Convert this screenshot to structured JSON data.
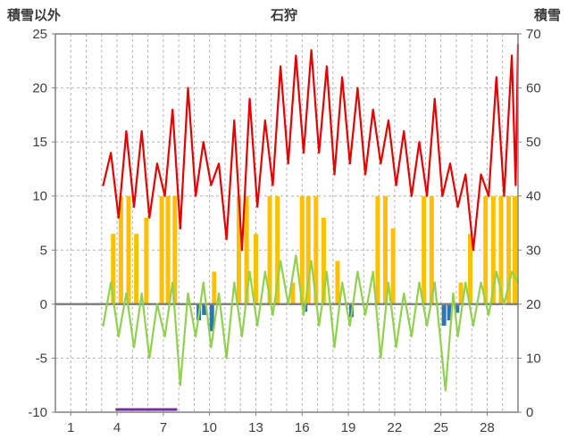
{
  "header": {
    "left_axis_title": "積雪以外",
    "chart_title": "石狩",
    "right_axis_title": "積雪"
  },
  "chart_data": {
    "type": "line",
    "title": "石狩",
    "left_axis": {
      "label": "積雪以外",
      "min": -10,
      "max": 25,
      "ticks": [
        25,
        20,
        15,
        10,
        5,
        0,
        -5,
        -10
      ]
    },
    "right_axis": {
      "label": "積雪",
      "min": 0,
      "max": 70,
      "ticks": [
        70,
        60,
        50,
        40,
        30,
        20,
        10,
        0
      ]
    },
    "x_axis": {
      "tick_labels": [
        1,
        4,
        7,
        10,
        13,
        16,
        19,
        22,
        25,
        28
      ]
    },
    "x_domain": [
      0,
      30
    ],
    "grid": {
      "color": "#b3b3b3",
      "frame_color": "#808080",
      "zero_line_color": "#808080",
      "text_color": "#404040"
    },
    "series": [
      {
        "name": "yellow-bars",
        "type": "bar",
        "color": "#ffc000",
        "points": [
          [
            3.75,
            6.5
          ],
          [
            4.25,
            10
          ],
          [
            4.75,
            10
          ],
          [
            5.25,
            6.5
          ],
          [
            5.9,
            8
          ],
          [
            6.9,
            10
          ],
          [
            7.3,
            10
          ],
          [
            7.75,
            10
          ],
          [
            10.3,
            3
          ],
          [
            11.9,
            10
          ],
          [
            12.4,
            10
          ],
          [
            13.0,
            6.5
          ],
          [
            13.9,
            10
          ],
          [
            14.4,
            10
          ],
          [
            15.4,
            2
          ],
          [
            16.0,
            10
          ],
          [
            16.4,
            10
          ],
          [
            16.9,
            10
          ],
          [
            17.4,
            8
          ],
          [
            18.3,
            4
          ],
          [
            20.9,
            10
          ],
          [
            21.4,
            10
          ],
          [
            21.9,
            7
          ],
          [
            23.9,
            10
          ],
          [
            24.4,
            10
          ],
          [
            26.3,
            2
          ],
          [
            26.9,
            6.5
          ],
          [
            27.9,
            10
          ],
          [
            28.4,
            10
          ],
          [
            28.9,
            10
          ],
          [
            29.4,
            10
          ],
          [
            29.8,
            10
          ]
        ]
      },
      {
        "name": "blue-bars",
        "type": "bar",
        "color": "#2e75b6",
        "points": [
          [
            9.3,
            -1.5
          ],
          [
            9.65,
            -1
          ],
          [
            10.15,
            -2.5
          ],
          [
            16.2,
            -0.7
          ],
          [
            19.2,
            -1.2
          ],
          [
            25.2,
            -2
          ],
          [
            25.55,
            -1.5
          ],
          [
            26.05,
            -0.8
          ]
        ]
      },
      {
        "name": "purple-segment",
        "type": "segment",
        "color": "#7030a0",
        "x_start": 3.9,
        "x_end": 7.9,
        "value": -10
      },
      {
        "name": "green-line",
        "type": "line",
        "color": "#92d050",
        "points": [
          [
            3.1,
            -2
          ],
          [
            3.6,
            2
          ],
          [
            4.1,
            -3
          ],
          [
            4.6,
            1
          ],
          [
            5.1,
            -4
          ],
          [
            5.6,
            1
          ],
          [
            6.1,
            -5
          ],
          [
            6.6,
            0
          ],
          [
            7.1,
            -3
          ],
          [
            7.6,
            2
          ],
          [
            8.1,
            -7.5
          ],
          [
            8.6,
            1
          ],
          [
            9.1,
            -3
          ],
          [
            9.6,
            2
          ],
          [
            10.1,
            -4
          ],
          [
            10.6,
            1
          ],
          [
            11.1,
            -5
          ],
          [
            11.6,
            2
          ],
          [
            12.1,
            -3
          ],
          [
            12.6,
            3
          ],
          [
            13.1,
            -2
          ],
          [
            13.6,
            3
          ],
          [
            14.1,
            -1
          ],
          [
            14.6,
            4
          ],
          [
            15.1,
            0
          ],
          [
            15.6,
            4.5
          ],
          [
            16.1,
            -1
          ],
          [
            16.6,
            4
          ],
          [
            17.1,
            -2
          ],
          [
            17.6,
            3
          ],
          [
            18.1,
            -4
          ],
          [
            18.6,
            2
          ],
          [
            19.1,
            -2
          ],
          [
            19.6,
            3
          ],
          [
            20.1,
            -1
          ],
          [
            20.6,
            3
          ],
          [
            21.1,
            -5
          ],
          [
            21.6,
            2
          ],
          [
            22.1,
            -4
          ],
          [
            22.6,
            1
          ],
          [
            23.1,
            -3
          ],
          [
            23.6,
            2
          ],
          [
            24.1,
            -2
          ],
          [
            24.6,
            2
          ],
          [
            25.3,
            -8
          ],
          [
            25.8,
            1
          ],
          [
            26.1,
            -3
          ],
          [
            26.6,
            2
          ],
          [
            27.1,
            -2
          ],
          [
            27.6,
            2
          ],
          [
            28.1,
            -1
          ],
          [
            28.6,
            3
          ],
          [
            29.1,
            0
          ],
          [
            29.6,
            3
          ],
          [
            30,
            2
          ]
        ]
      },
      {
        "name": "red-line",
        "type": "line",
        "color": "#e60000",
        "points": [
          [
            3.1,
            11
          ],
          [
            3.6,
            14
          ],
          [
            4.1,
            8
          ],
          [
            4.6,
            16
          ],
          [
            5.1,
            9
          ],
          [
            5.6,
            16
          ],
          [
            6.1,
            8
          ],
          [
            6.6,
            13
          ],
          [
            7.1,
            10
          ],
          [
            7.6,
            18
          ],
          [
            8.1,
            7
          ],
          [
            8.6,
            20
          ],
          [
            9.1,
            10
          ],
          [
            9.6,
            15
          ],
          [
            10.1,
            11
          ],
          [
            10.6,
            13
          ],
          [
            11.1,
            6
          ],
          [
            11.6,
            17
          ],
          [
            12.1,
            5
          ],
          [
            12.6,
            19
          ],
          [
            13.1,
            9
          ],
          [
            13.6,
            17
          ],
          [
            14.1,
            11
          ],
          [
            14.6,
            22
          ],
          [
            15.1,
            13
          ],
          [
            15.6,
            23
          ],
          [
            16.1,
            14
          ],
          [
            16.6,
            23.5
          ],
          [
            17.1,
            14
          ],
          [
            17.6,
            22
          ],
          [
            18.1,
            12
          ],
          [
            18.6,
            21
          ],
          [
            19.1,
            13
          ],
          [
            19.6,
            20
          ],
          [
            20.1,
            12
          ],
          [
            20.6,
            18
          ],
          [
            21.1,
            13
          ],
          [
            21.6,
            17
          ],
          [
            22.1,
            11
          ],
          [
            22.6,
            16
          ],
          [
            23.1,
            10
          ],
          [
            23.6,
            15
          ],
          [
            24.1,
            10
          ],
          [
            24.6,
            19
          ],
          [
            25.1,
            10
          ],
          [
            25.6,
            13
          ],
          [
            26.1,
            9
          ],
          [
            26.6,
            12
          ],
          [
            27.1,
            5
          ],
          [
            27.6,
            12
          ],
          [
            28.1,
            10
          ],
          [
            28.6,
            21
          ],
          [
            29.1,
            10
          ],
          [
            29.6,
            23
          ],
          [
            29.85,
            11
          ],
          [
            30,
            24
          ]
        ]
      }
    ]
  }
}
